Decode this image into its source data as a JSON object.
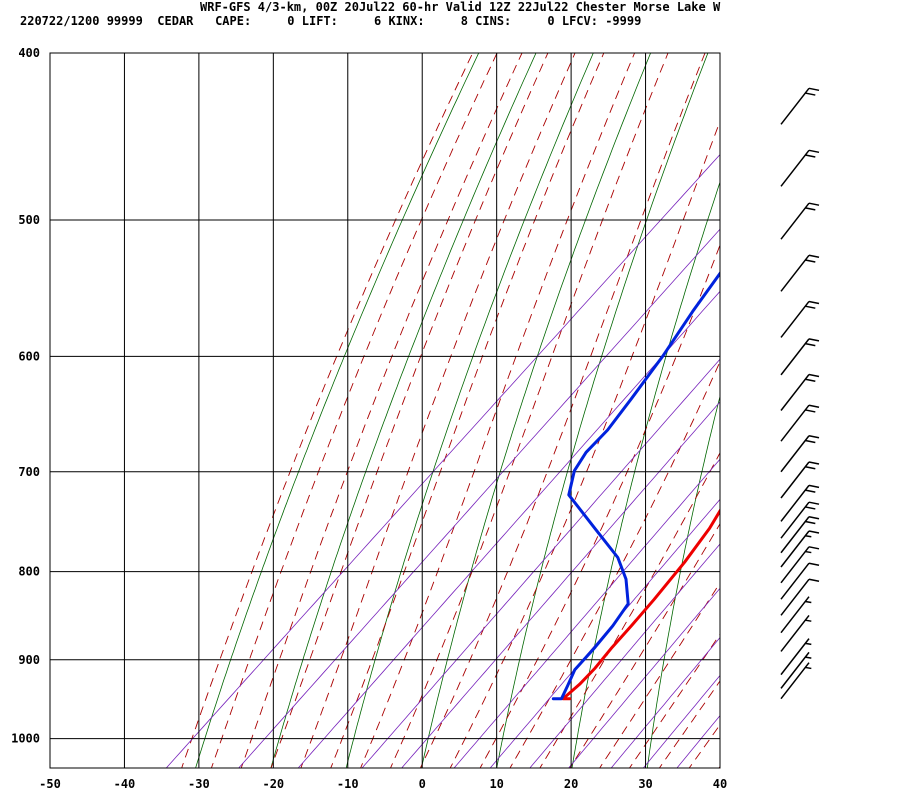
{
  "header": {
    "line1": "WRF-GFS 4/3-km, 00Z 20Jul22 60-hr Valid 12Z 22Jul22 Chester Morse Lake W",
    "line2": "220722/1200 99999  CEDAR   CAPE:     0 LIFT:     6 KINX:     8 CINS:     0 LFCV: -9999"
  },
  "chart_data": {
    "type": "skew-t",
    "xlim": [
      -50,
      40
    ],
    "ylim": [
      1040,
      400
    ],
    "y_scale": "log",
    "x_ticks": [
      "-50",
      "-40",
      "-30",
      "-20",
      "-10",
      "0",
      "10",
      "20",
      "30",
      "40"
    ],
    "y_ticks": [
      "400",
      "500",
      "600",
      "700",
      "800",
      "900",
      "1000"
    ],
    "x_tick_values": [
      -50,
      -40,
      -30,
      -20,
      -10,
      0,
      10,
      20,
      30,
      40
    ],
    "y_tick_values": [
      400,
      500,
      600,
      700,
      800,
      900,
      1000
    ],
    "grid": true,
    "colors": {
      "temperature": "#ee0000",
      "dewpoint": "#0022dd",
      "dry_adiabats": "#006600",
      "moist_adiabats": "#aa0000",
      "mixing_ratio": "#7722bb"
    },
    "series": [
      {
        "role": "temperature",
        "points": [
          [
            10.5,
            948
          ],
          [
            9.6,
            948
          ],
          [
            9.9,
            930
          ],
          [
            9.8,
            910
          ],
          [
            9.3,
            885
          ],
          [
            9.0,
            860
          ],
          [
            8.5,
            830
          ],
          [
            7.6,
            790
          ],
          [
            6.4,
            755
          ],
          [
            4.5,
            720
          ],
          [
            2.4,
            690
          ],
          [
            0.5,
            663
          ],
          [
            -1.9,
            635
          ],
          [
            -4.3,
            610
          ],
          [
            -7.2,
            582
          ],
          [
            -10.5,
            550
          ],
          [
            -13.8,
            520
          ],
          [
            -16.9,
            495
          ],
          [
            -20.0,
            472
          ],
          [
            -21.8,
            455
          ]
        ]
      },
      {
        "role": "dewpoint",
        "points": [
          [
            8.3,
            948
          ],
          [
            9.4,
            948
          ],
          [
            8.5,
            932
          ],
          [
            7.3,
            912
          ],
          [
            7.0,
            885
          ],
          [
            6.5,
            860
          ],
          [
            5.6,
            835
          ],
          [
            2.0,
            808
          ],
          [
            -2.0,
            785
          ],
          [
            -9.0,
            755
          ],
          [
            -17.0,
            722
          ],
          [
            -19.5,
            699
          ],
          [
            -20.4,
            682
          ],
          [
            -20.5,
            662
          ],
          [
            -21.5,
            635
          ],
          [
            -23.0,
            600
          ],
          [
            -25.0,
            565
          ],
          [
            -26.8,
            530
          ],
          [
            -28.3,
            500
          ],
          [
            -30.9,
            475
          ],
          [
            -34.3,
            447
          ]
        ]
      }
    ],
    "wind_barbs": [
      {
        "p": 948,
        "kt": 5
      },
      {
        "p": 935,
        "kt": 5
      },
      {
        "p": 918,
        "kt": 5
      },
      {
        "p": 890,
        "kt": 5
      },
      {
        "p": 868,
        "kt": 5
      },
      {
        "p": 848,
        "kt": 10
      },
      {
        "p": 830,
        "kt": 10
      },
      {
        "p": 812,
        "kt": 15
      },
      {
        "p": 795,
        "kt": 15
      },
      {
        "p": 780,
        "kt": 20
      },
      {
        "p": 765,
        "kt": 20
      },
      {
        "p": 748,
        "kt": 20
      },
      {
        "p": 725,
        "kt": 20
      },
      {
        "p": 700,
        "kt": 20
      },
      {
        "p": 672,
        "kt": 20
      },
      {
        "p": 645,
        "kt": 20
      },
      {
        "p": 615,
        "kt": 20
      },
      {
        "p": 585,
        "kt": 20
      },
      {
        "p": 550,
        "kt": 20
      },
      {
        "p": 513,
        "kt": 20
      },
      {
        "p": 478,
        "kt": 20
      },
      {
        "p": 440,
        "kt": 20
      }
    ]
  }
}
